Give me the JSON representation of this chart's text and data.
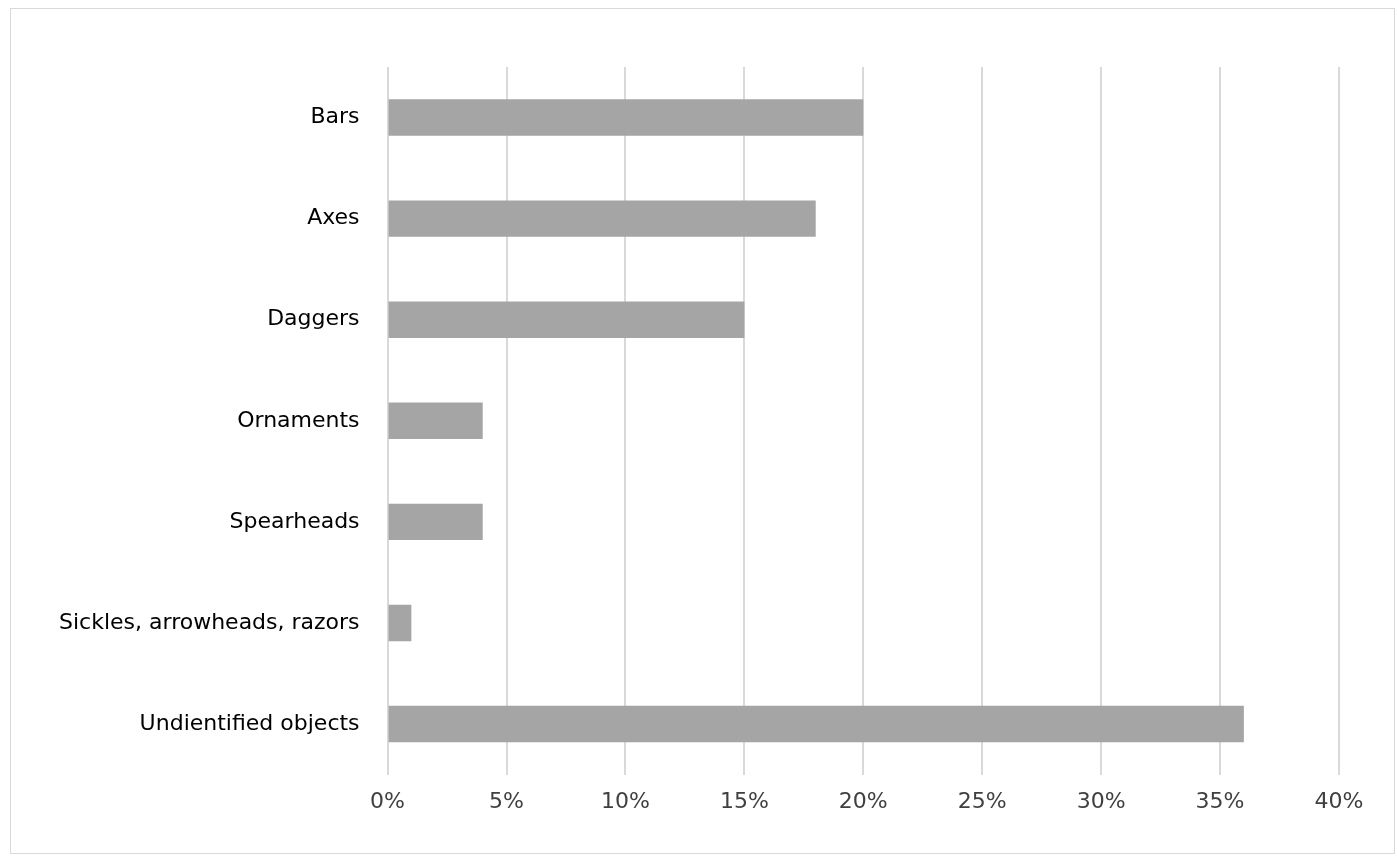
{
  "chart_data": {
    "type": "bar",
    "orientation": "horizontal",
    "categories": [
      "Bars",
      "Axes",
      "Daggers",
      "Ornaments",
      "Spearheads",
      "Sickles, arrowheads, razors",
      "Undientified objects"
    ],
    "values": [
      20,
      18,
      15,
      4,
      4,
      1,
      36
    ],
    "color": "#a5a5a5",
    "xlim": [
      0,
      40
    ],
    "xticks": [
      {
        "value": 0,
        "label": "0%"
      },
      {
        "value": 5,
        "label": "5%"
      },
      {
        "value": 10,
        "label": "10%"
      },
      {
        "value": 15,
        "label": "15%"
      },
      {
        "value": 20,
        "label": "20%"
      },
      {
        "value": 25,
        "label": "25%"
      },
      {
        "value": 30,
        "label": "30%"
      },
      {
        "value": 35,
        "label": "35%"
      },
      {
        "value": 40,
        "label": "40%"
      }
    ],
    "grid": "x"
  }
}
